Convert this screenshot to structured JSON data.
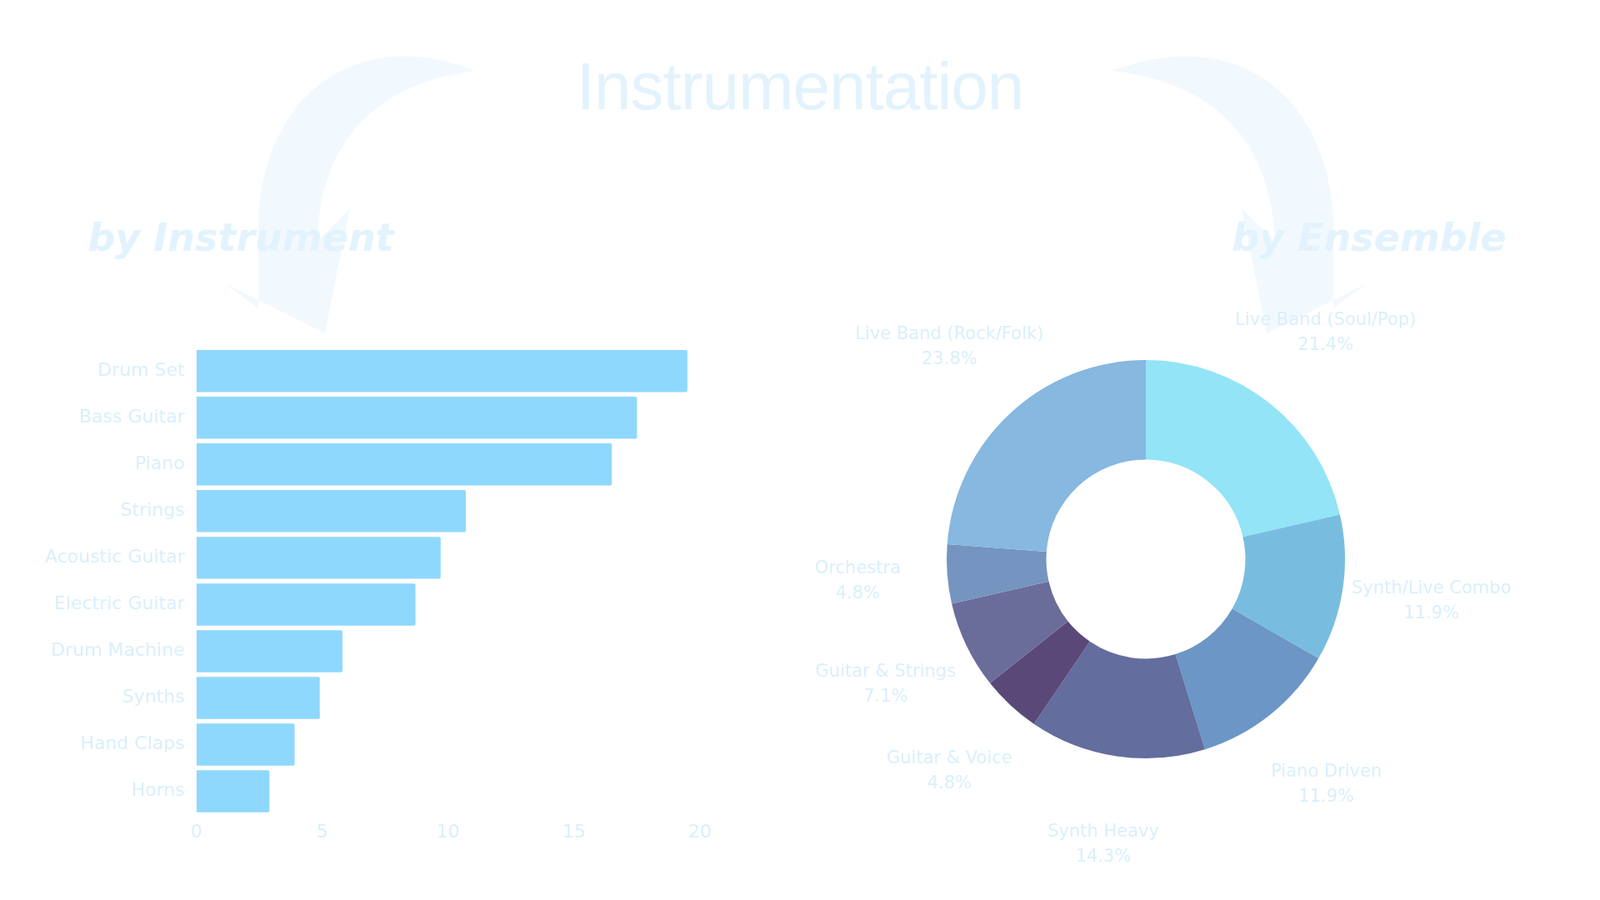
{
  "title": "Instrumentation",
  "chart_data": [
    {
      "type": "bar",
      "title": "by Instrument",
      "orientation": "horizontal",
      "categories": [
        "Drum Set",
        "Bass Guitar",
        "Piano",
        "Strings",
        "Acoustic Guitar",
        "Electric Guitar",
        "Drum Machine",
        "Synths",
        "Hand Claps",
        "Horns"
      ],
      "values": [
        19.5,
        17.5,
        16.5,
        10.7,
        9.7,
        8.7,
        5.8,
        4.9,
        3.9,
        2.9
      ],
      "color": "#8fd8fd",
      "xlim": [
        0,
        20
      ],
      "xticks": [
        0,
        5,
        10,
        15,
        20
      ],
      "grid": false
    },
    {
      "type": "doughnut",
      "title": "by Ensemble",
      "categories": [
        "Live Band (Soul/Pop)",
        "Synth/Live Combo",
        "Piano Driven",
        "Synth Heavy",
        "Guitar & Voice",
        "Guitar & Strings",
        "Orchestra",
        "Live Band (Rock/Folk)"
      ],
      "values": [
        21.4,
        11.9,
        11.9,
        14.3,
        4.8,
        7.1,
        4.8,
        23.8
      ],
      "value_labels": [
        "21.4%",
        "11.9%",
        "11.9%",
        "14.3%",
        "4.8%",
        "7.1%",
        "4.8%",
        "23.8%"
      ],
      "colors": [
        "#93e4f6",
        "#78bde0",
        "#6b96c5",
        "#636d9e",
        "#5a4878",
        "#6a6c9a",
        "#7594c0",
        "#86b8e0"
      ],
      "data_labels": true
    }
  ]
}
